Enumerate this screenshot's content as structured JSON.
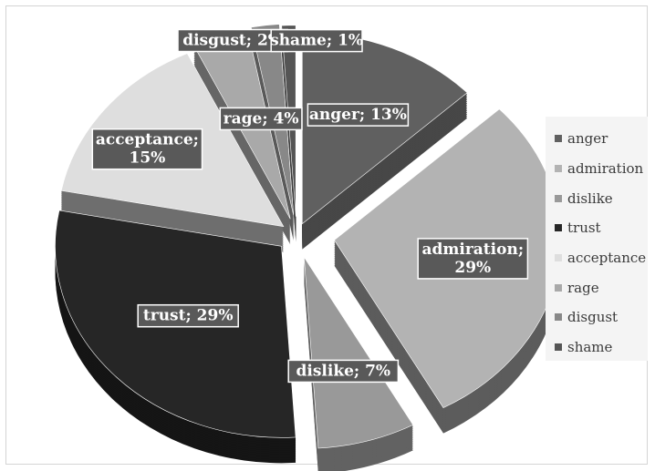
{
  "chart_data": {
    "type": "pie",
    "style": "3d-exploded",
    "title": "",
    "legend_position": "right",
    "slices": [
      {
        "label": "anger",
        "value": 13,
        "display": "anger; 13%",
        "color": "#606060",
        "side": "#474747"
      },
      {
        "label": "admiration",
        "value": 29,
        "display": "admiration; 29%",
        "color": "#b3b3b3",
        "side": "#5c5c5c"
      },
      {
        "label": "dislike",
        "value": 7,
        "display": "dislike; 7%",
        "color": "#999999",
        "side": "#626262"
      },
      {
        "label": "trust",
        "value": 29,
        "display": "trust; 29%",
        "color": "#262626",
        "side": "#151515"
      },
      {
        "label": "acceptance",
        "value": 15,
        "display": "acceptance; 15%",
        "color": "#dedede",
        "side": "#6e6e6e"
      },
      {
        "label": "rage",
        "value": 4,
        "display": "rage; 4%",
        "color": "#a9a9a9",
        "side": "#666666"
      },
      {
        "label": "disgust",
        "value": 2,
        "display": "disgust; 2%",
        "color": "#888888",
        "side": "#5a5a5a"
      },
      {
        "label": "shame",
        "value": 1,
        "display": "shame; 1%",
        "color": "#555555",
        "side": "#3c3c3c"
      }
    ]
  }
}
